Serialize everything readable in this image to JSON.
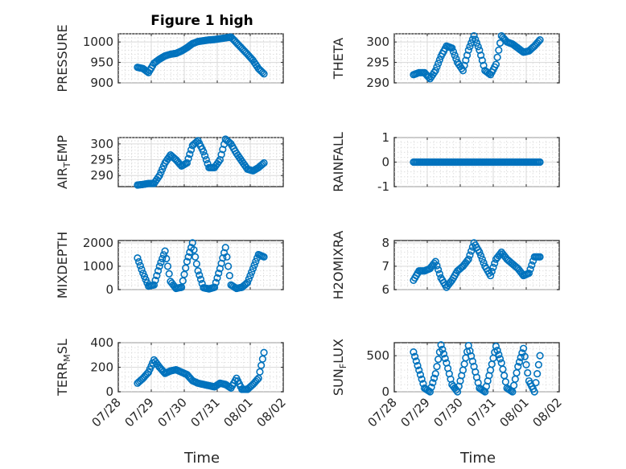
{
  "figure": {
    "title": "Figure 1 high",
    "xlabel": "Time",
    "x_ticks": [
      "07/28",
      "07/29",
      "07/30",
      "07/31",
      "08/01",
      "08/02"
    ],
    "marker_color": "#0072bd",
    "marker": "circle"
  },
  "chart_data": [
    {
      "type": "scatter",
      "title": "Figure 1 high",
      "ylabel": "PRESSURE",
      "ylim": [
        900,
        1020
      ],
      "yticks": [
        "900",
        "950",
        "1000"
      ],
      "xlim": [
        "07/28",
        "08/02"
      ],
      "grid": true,
      "x": [
        "07/28 14:00",
        "07/28 18:00",
        "07/28 22:00",
        "07/29 02:00",
        "07/29 06:00",
        "07/29 10:00",
        "07/29 14:00",
        "07/29 18:00",
        "07/29 22:00",
        "07/30 02:00",
        "07/30 06:00",
        "07/30 10:00",
        "07/30 14:00",
        "07/30 18:00",
        "07/30 22:00",
        "07/31 02:00",
        "07/31 06:00",
        "07/31 10:00",
        "07/31 14:00",
        "07/31 18:00",
        "07/31 22:00",
        "08/01 02:00",
        "08/01 06:00",
        "08/01 10:00"
      ],
      "y": [
        938,
        935,
        925,
        948,
        958,
        966,
        970,
        972,
        978,
        986,
        996,
        1001,
        1003,
        1005,
        1006,
        1008,
        1010,
        1012,
        998,
        984,
        970,
        955,
        935,
        922
      ]
    },
    {
      "type": "scatter",
      "ylabel": "THETA",
      "ylim": [
        290,
        302
      ],
      "yticks": [
        "290",
        "295",
        "300"
      ],
      "xlim": [
        "07/28",
        "08/02"
      ],
      "grid": true,
      "x": [
        "07/28 14:00",
        "07/28 18:00",
        "07/28 22:00",
        "07/29 02:00",
        "07/29 06:00",
        "07/29 10:00",
        "07/29 14:00",
        "07/29 18:00",
        "07/29 22:00",
        "07/30 02:00",
        "07/30 06:00",
        "07/30 10:00",
        "07/30 14:00",
        "07/30 18:00",
        "07/30 22:00",
        "07/31 02:00",
        "07/31 06:00",
        "07/31 10:00",
        "07/31 14:00",
        "07/31 18:00",
        "07/31 22:00",
        "08/01 02:00",
        "08/01 06:00",
        "08/01 10:00"
      ],
      "y": [
        292,
        292.5,
        292.5,
        291,
        293,
        296.5,
        299,
        298.5,
        295,
        293,
        298,
        301.5,
        298,
        293,
        292,
        294.5,
        301.5,
        300,
        299.5,
        298.5,
        297.5,
        297.8,
        299,
        300.5
      ]
    },
    {
      "type": "scatter",
      "ylabel": "AIR_TEMP",
      "ylim": [
        286.5,
        302
      ],
      "yticks": [
        "290",
        "295",
        "300"
      ],
      "xlim": [
        "07/28",
        "08/02"
      ],
      "grid": true,
      "x": [
        "07/28 14:00",
        "07/28 18:00",
        "07/28 22:00",
        "07/29 02:00",
        "07/29 06:00",
        "07/29 10:00",
        "07/29 14:00",
        "07/29 18:00",
        "07/29 22:00",
        "07/30 02:00",
        "07/30 06:00",
        "07/30 10:00",
        "07/30 14:00",
        "07/30 18:00",
        "07/30 22:00",
        "07/31 02:00",
        "07/31 06:00",
        "07/31 10:00",
        "07/31 14:00",
        "07/31 18:00",
        "07/31 22:00",
        "08/01 02:00",
        "08/01 06:00",
        "08/01 10:00"
      ],
      "y": [
        287,
        287.2,
        287.5,
        287.5,
        290,
        294,
        296.5,
        295,
        293,
        294,
        299.5,
        301,
        297.5,
        292.5,
        292.5,
        295,
        301.5,
        300,
        297,
        294.5,
        292,
        291.5,
        292.5,
        294
      ]
    },
    {
      "type": "scatter",
      "ylabel": "RAINFALL",
      "ylim": [
        -1,
        1
      ],
      "yticks": [
        "-1",
        "0",
        "1"
      ],
      "xlim": [
        "07/28",
        "08/02"
      ],
      "grid": true,
      "x": [
        "07/28 14:00",
        "07/28 18:00",
        "07/28 22:00",
        "07/29 02:00",
        "07/29 06:00",
        "07/29 10:00",
        "07/29 14:00",
        "07/29 18:00",
        "07/29 22:00",
        "07/30 02:00",
        "07/30 06:00",
        "07/30 10:00",
        "07/30 14:00",
        "07/30 18:00",
        "07/30 22:00",
        "07/31 02:00",
        "07/31 06:00",
        "07/31 10:00",
        "07/31 14:00",
        "07/31 18:00",
        "07/31 22:00",
        "08/01 02:00",
        "08/01 06:00",
        "08/01 10:00"
      ],
      "y": [
        0,
        0,
        0,
        0,
        0,
        0,
        0,
        0,
        0,
        0,
        0,
        0,
        0,
        0,
        0,
        0,
        0,
        0,
        0,
        0,
        0,
        0,
        0,
        0
      ]
    },
    {
      "type": "scatter",
      "ylabel": "MIXDEPTH",
      "ylim": [
        0,
        2100
      ],
      "yticks": [
        "0",
        "1000",
        "2000"
      ],
      "xlim": [
        "07/28",
        "08/02"
      ],
      "grid": true,
      "x": [
        "07/28 14:00",
        "07/28 18:00",
        "07/28 22:00",
        "07/29 02:00",
        "07/29 06:00",
        "07/29 10:00",
        "07/29 14:00",
        "07/29 18:00",
        "07/29 22:00",
        "07/30 02:00",
        "07/30 06:00",
        "07/30 10:00",
        "07/30 14:00",
        "07/30 18:00",
        "07/30 22:00",
        "07/31 02:00",
        "07/31 06:00",
        "07/31 10:00",
        "07/31 14:00",
        "07/31 18:00",
        "07/31 22:00",
        "08/01 02:00",
        "08/01 06:00",
        "08/01 10:00"
      ],
      "y": [
        1350,
        700,
        150,
        200,
        1000,
        1650,
        350,
        50,
        100,
        1200,
        2000,
        800,
        80,
        30,
        100,
        900,
        1800,
        200,
        50,
        100,
        300,
        900,
        1500,
        1400
      ]
    },
    {
      "type": "scatter",
      "ylabel": "H2OMIXRA",
      "ylim": [
        6,
        8.1
      ],
      "yticks": [
        "6",
        "7",
        "8"
      ],
      "xlim": [
        "07/28",
        "08/02"
      ],
      "grid": true,
      "x": [
        "07/28 14:00",
        "07/28 18:00",
        "07/28 22:00",
        "07/29 02:00",
        "07/29 06:00",
        "07/29 10:00",
        "07/29 14:00",
        "07/29 18:00",
        "07/29 22:00",
        "07/30 02:00",
        "07/30 06:00",
        "07/30 10:00",
        "07/30 14:00",
        "07/30 18:00",
        "07/30 22:00",
        "07/31 02:00",
        "07/31 06:00",
        "07/31 10:00",
        "07/31 14:00",
        "07/31 18:00",
        "07/31 22:00",
        "08/01 02:00",
        "08/01 06:00",
        "08/01 10:00"
      ],
      "y": [
        6.4,
        6.8,
        6.8,
        6.9,
        7.2,
        6.5,
        6.1,
        6.4,
        6.8,
        7,
        7.3,
        8,
        7.6,
        7,
        6.6,
        7.3,
        7.6,
        7.3,
        7.1,
        6.9,
        6.6,
        6.7,
        7.4,
        7.4
      ]
    },
    {
      "type": "scatter",
      "ylabel": "TERR_MSL",
      "ylim": [
        0,
        400
      ],
      "yticks": [
        "0",
        "200",
        "400"
      ],
      "xlim": [
        "07/28",
        "08/02"
      ],
      "grid": true,
      "x": [
        "07/28 14:00",
        "07/28 18:00",
        "07/28 22:00",
        "07/29 02:00",
        "07/29 06:00",
        "07/29 10:00",
        "07/29 14:00",
        "07/29 18:00",
        "07/29 22:00",
        "07/30 02:00",
        "07/30 06:00",
        "07/30 10:00",
        "07/30 14:00",
        "07/30 18:00",
        "07/30 22:00",
        "07/31 02:00",
        "07/31 06:00",
        "07/31 10:00",
        "07/31 14:00",
        "07/31 18:00",
        "07/31 22:00",
        "08/01 02:00",
        "08/01 06:00",
        "08/01 10:00"
      ],
      "y": [
        70,
        110,
        160,
        260,
        200,
        150,
        170,
        180,
        160,
        140,
        90,
        70,
        60,
        50,
        40,
        70,
        60,
        30,
        110,
        20,
        20,
        60,
        110,
        320
      ]
    },
    {
      "type": "scatter",
      "ylabel": "SUN_FLUX",
      "ylim": [
        0,
        680
      ],
      "yticks": [
        "0",
        "500"
      ],
      "xlim": [
        "07/28",
        "08/02"
      ],
      "grid": true,
      "x": [
        "07/28 14:00",
        "07/28 18:00",
        "07/28 22:00",
        "07/29 02:00",
        "07/29 06:00",
        "07/29 10:00",
        "07/29 14:00",
        "07/29 18:00",
        "07/29 22:00",
        "07/30 02:00",
        "07/30 06:00",
        "07/30 10:00",
        "07/30 14:00",
        "07/30 18:00",
        "07/30 22:00",
        "07/31 02:00",
        "07/31 06:00",
        "07/31 10:00",
        "07/31 14:00",
        "07/31 18:00",
        "07/31 22:00",
        "08/01 02:00",
        "08/01 06:00",
        "08/01 10:00"
      ],
      "y": [
        550,
        300,
        50,
        0,
        250,
        650,
        400,
        100,
        0,
        300,
        640,
        350,
        50,
        0,
        300,
        630,
        400,
        50,
        0,
        350,
        600,
        150,
        0,
        500
      ]
    }
  ]
}
